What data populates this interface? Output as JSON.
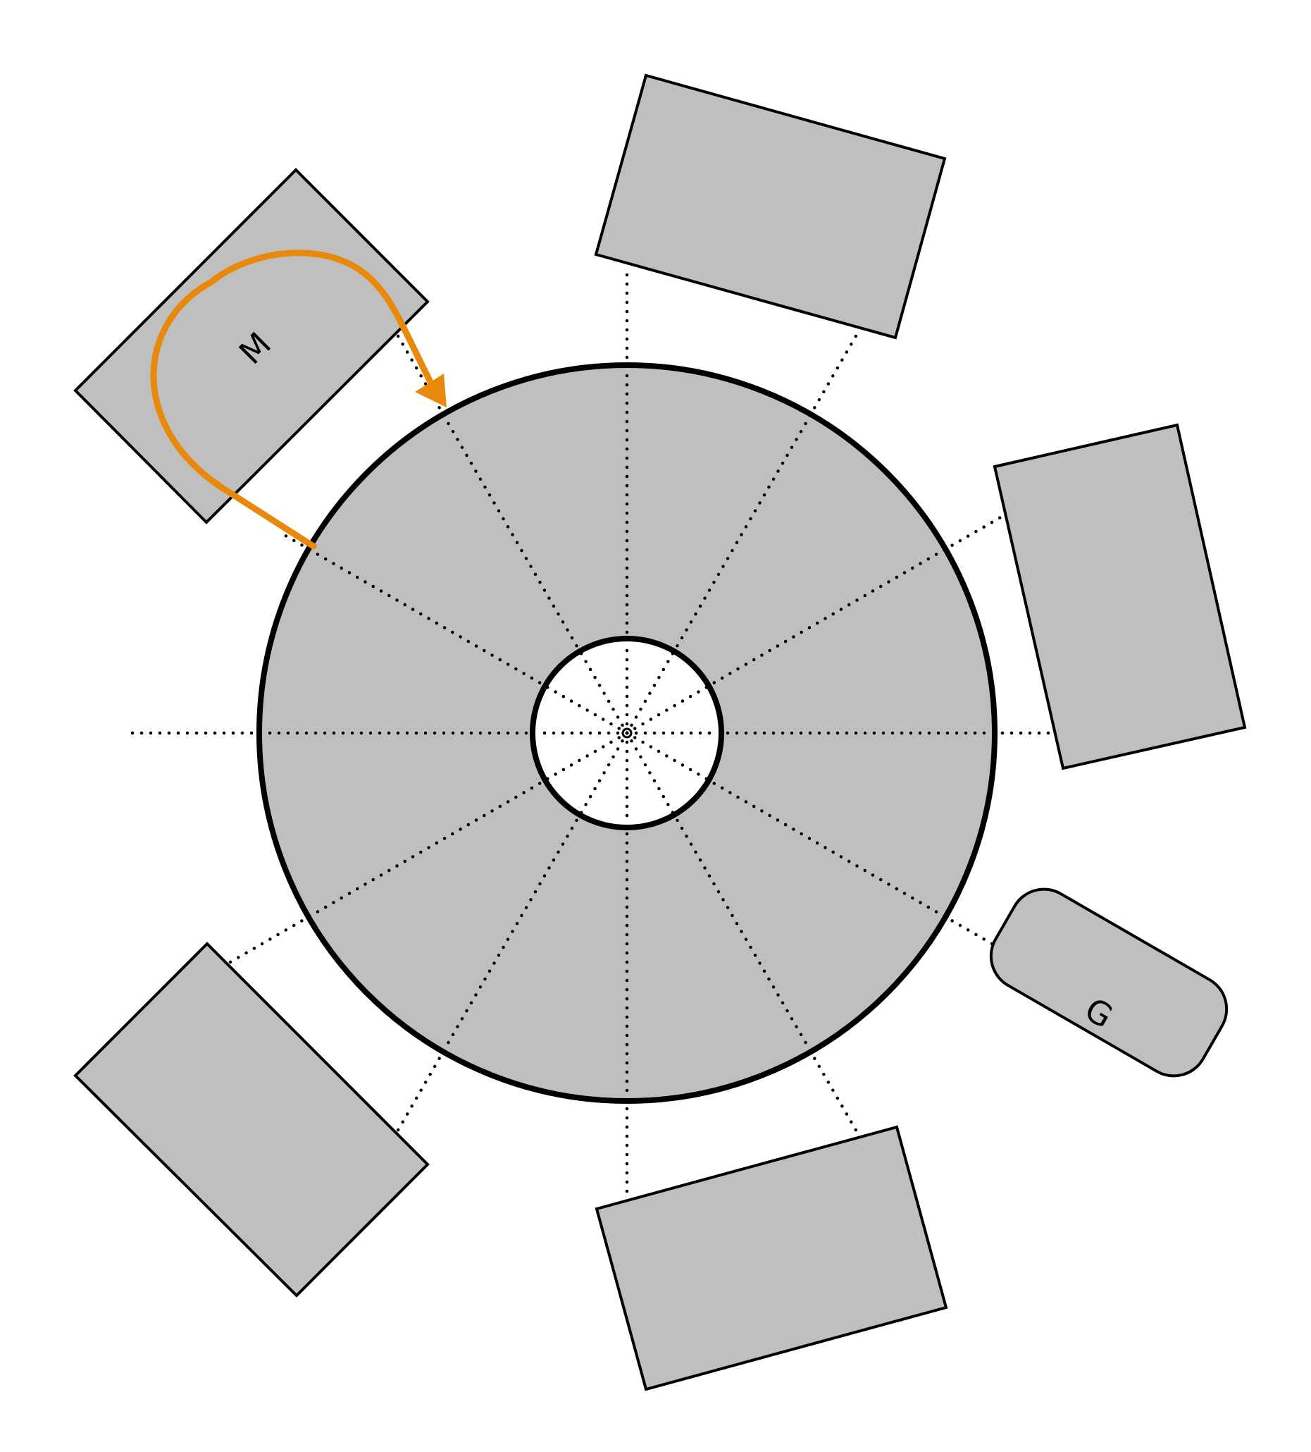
{
  "labels": {
    "machine": "M",
    "gripper": "G"
  },
  "colors": {
    "fill": "#bfbfbf",
    "stroke": "#000000",
    "background": "#ffffff",
    "path": "#e8890c"
  }
}
